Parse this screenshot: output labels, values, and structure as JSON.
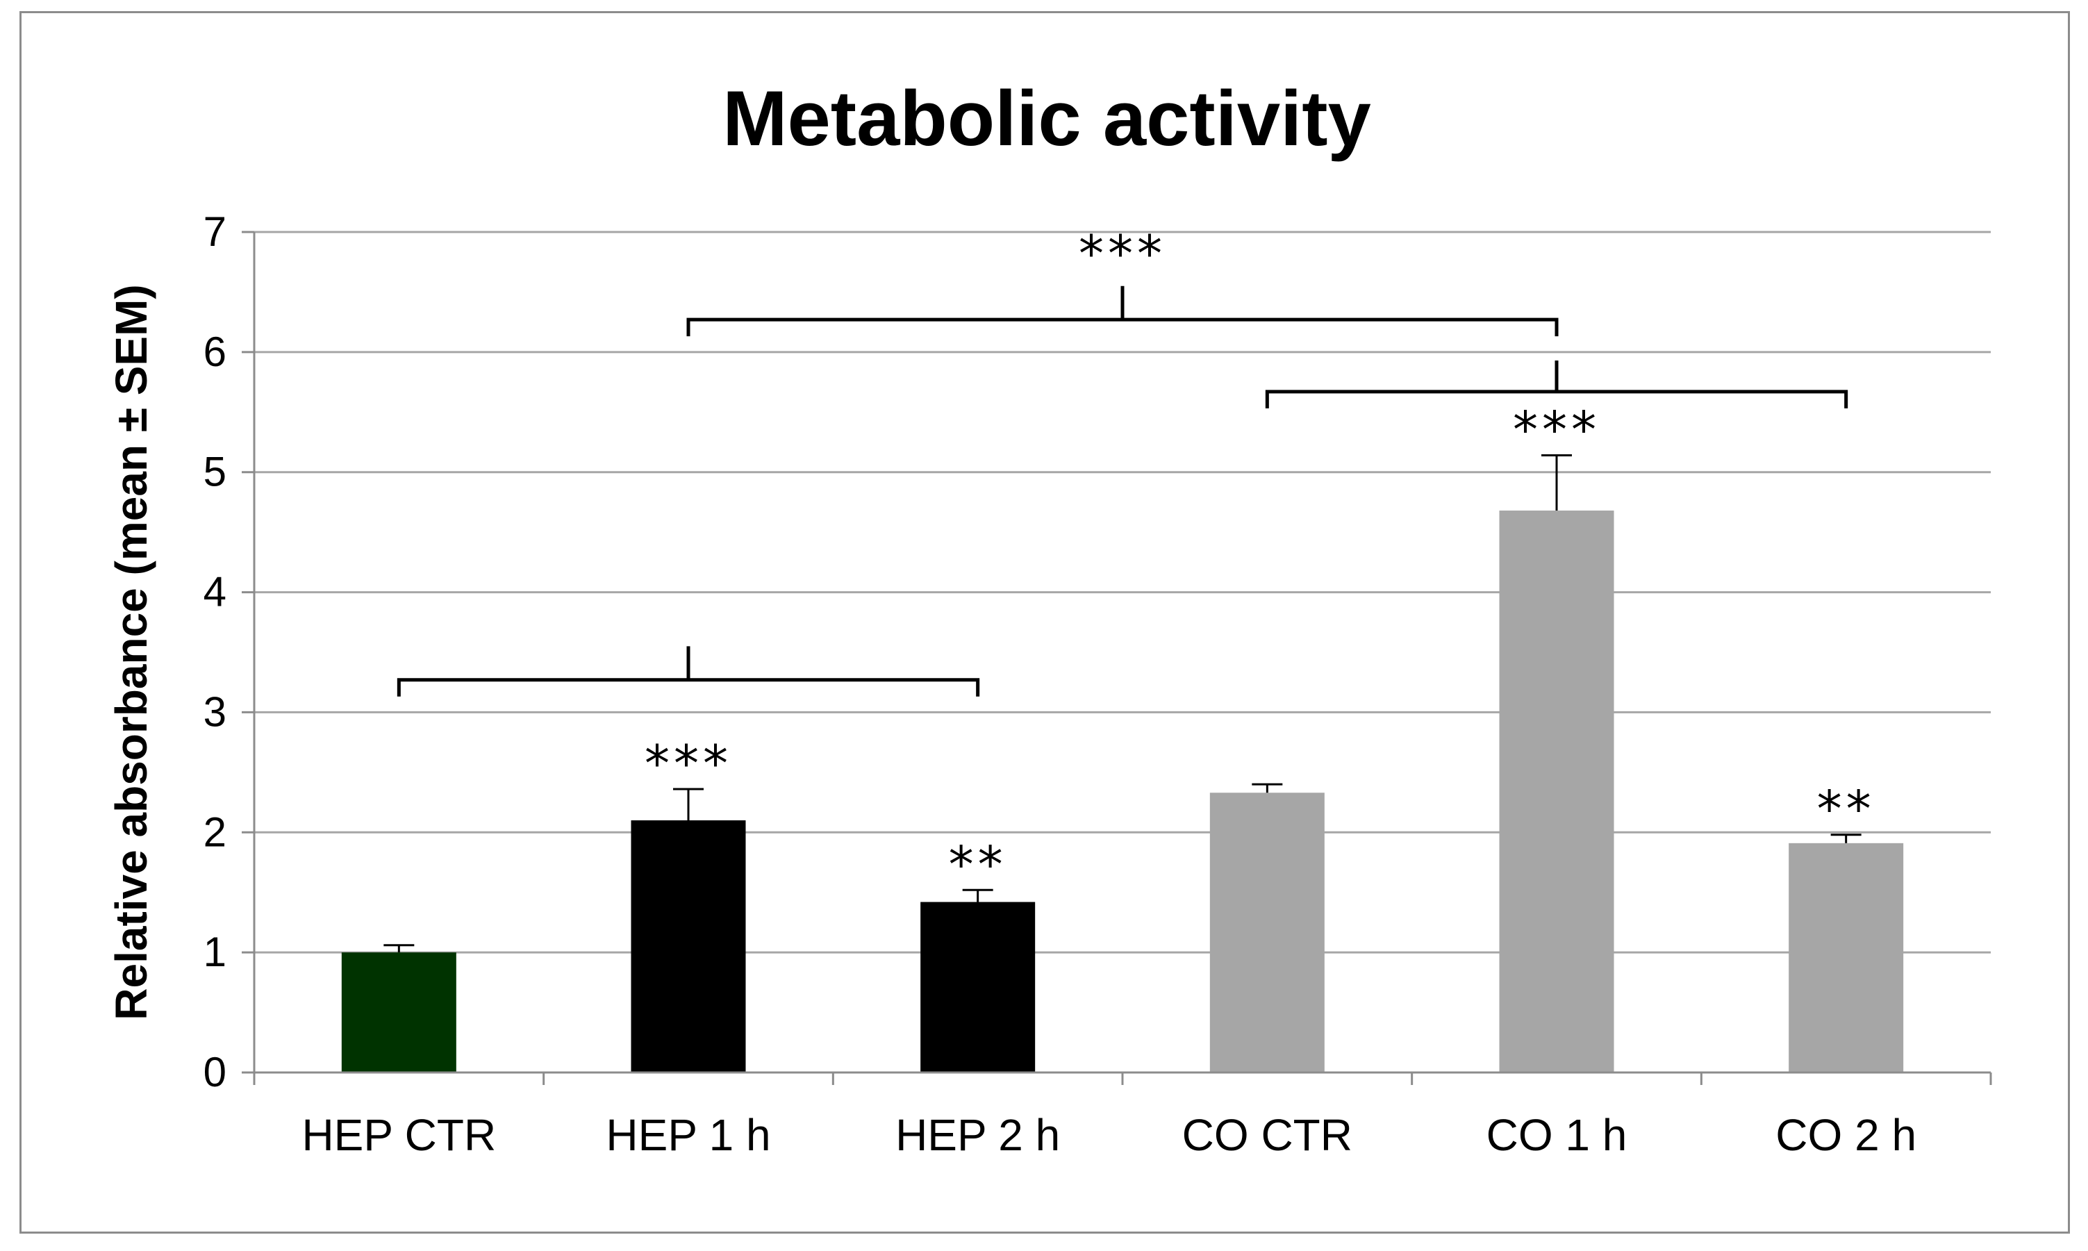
{
  "chart_data": {
    "type": "bar",
    "title": "Metabolic activity",
    "xlabel": "",
    "ylabel": "Relative absorbance (mean ± SEM)",
    "ylim": [
      0,
      7
    ],
    "yticks": [
      "0",
      "1",
      "2",
      "3",
      "4",
      "5",
      "6",
      "7"
    ],
    "grid": true,
    "categories": [
      "HEP CTR",
      "HEP 1 h",
      "HEP 2 h",
      "CO CTR",
      "CO 1 h",
      "CO 2 h"
    ],
    "values": [
      1.0,
      2.1,
      1.42,
      2.33,
      4.68,
      1.91
    ],
    "errors": [
      0.06,
      0.26,
      0.1,
      0.07,
      0.46,
      0.07
    ],
    "colors": [
      "#003300",
      "#000000",
      "#000000",
      "#a6a6a6",
      "#a6a6a6",
      "#a6a6a6"
    ],
    "bar_significance": [
      "",
      "***",
      "**",
      "",
      "***",
      "**"
    ],
    "brackets": [
      {
        "from": "HEP CTR",
        "to": "HEP 2 h",
        "y": 3.27,
        "tick_top": 3.55,
        "label": ""
      },
      {
        "from": "HEP 1 h",
        "to": "CO 1 h",
        "y": 6.27,
        "tick_top": 6.55,
        "label": "***"
      },
      {
        "from": "CO CTR",
        "to": "CO 2 h",
        "y": 5.67,
        "tick_top": 5.93,
        "label": ""
      }
    ]
  }
}
